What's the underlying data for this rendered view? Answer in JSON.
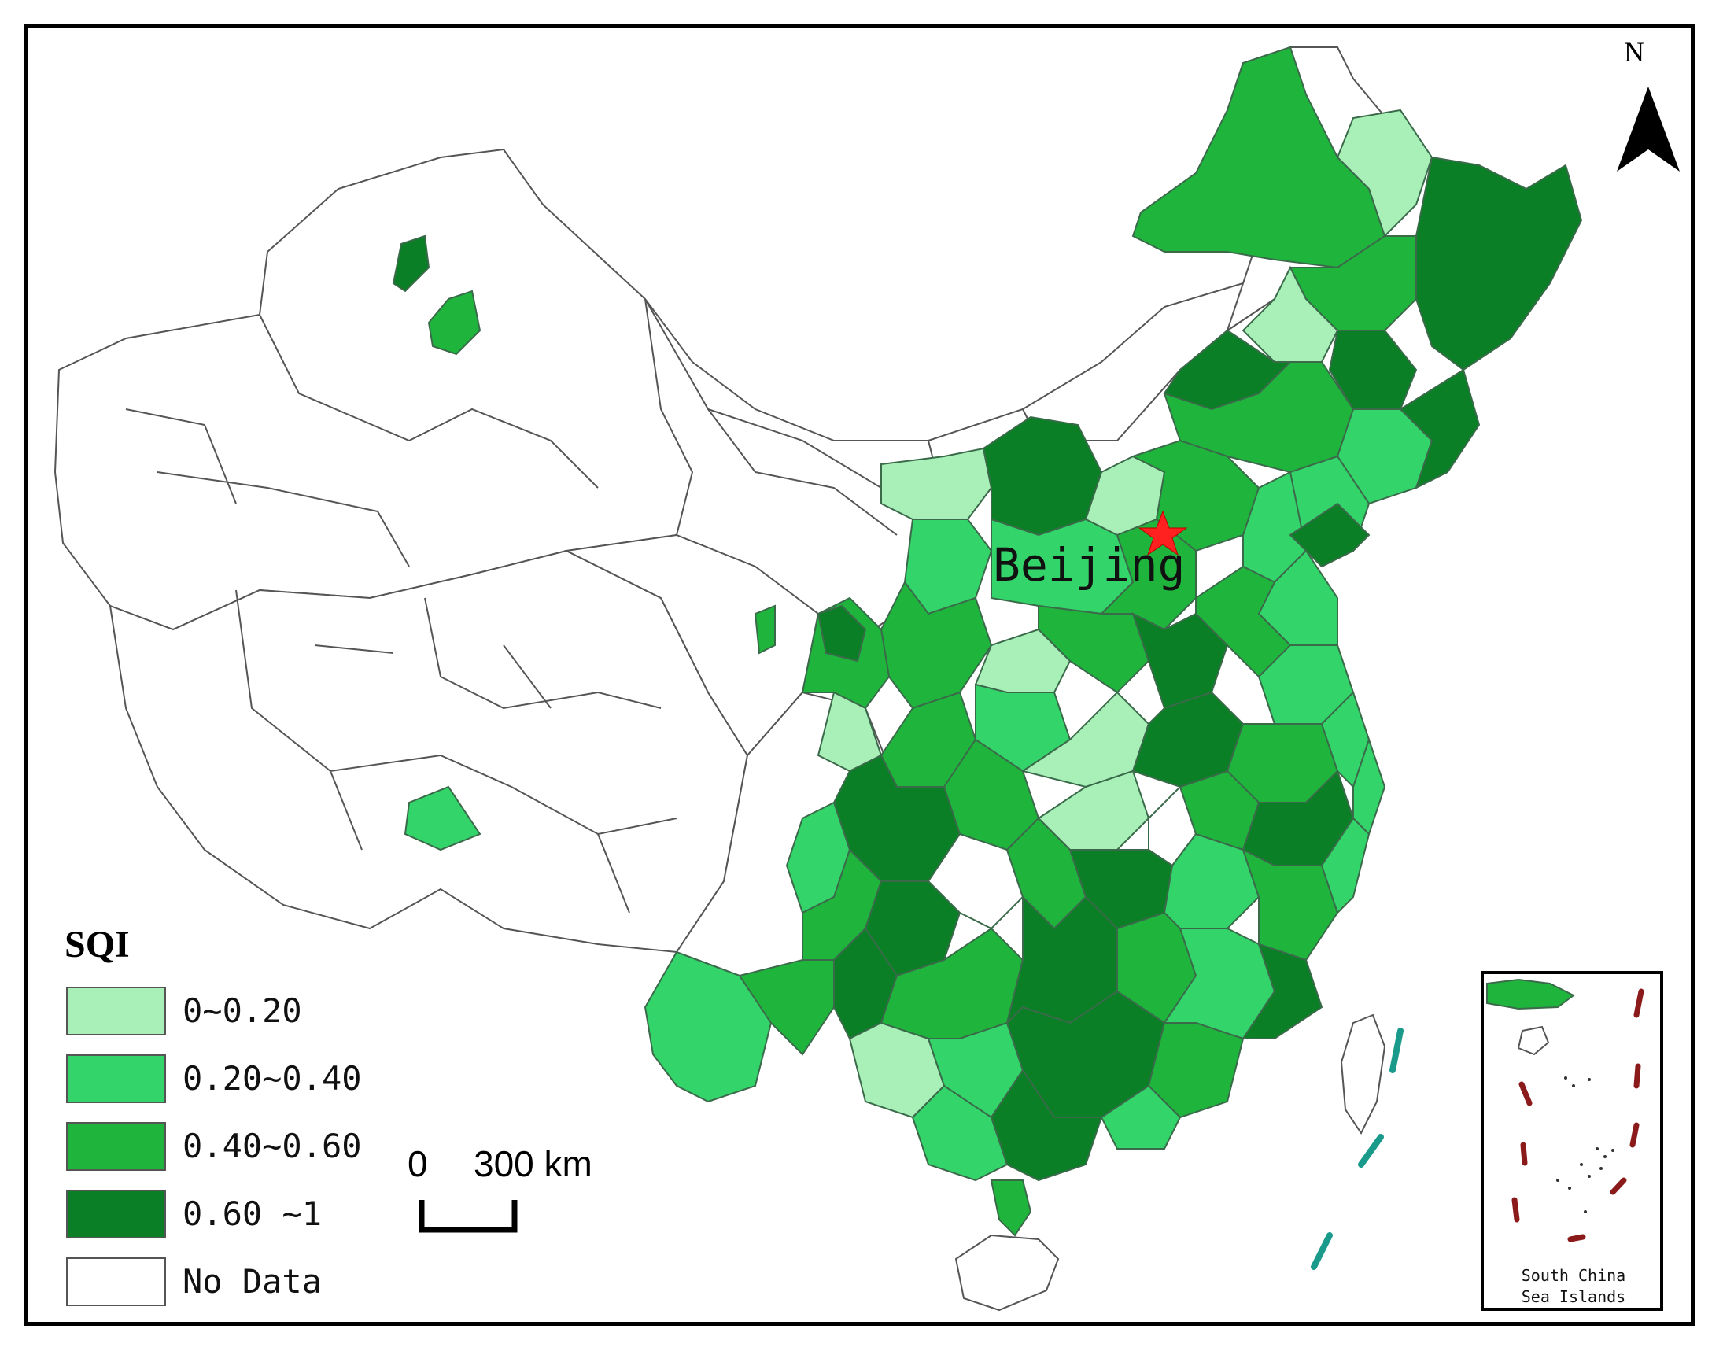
{
  "map": {
    "north_label": "N",
    "capital_label": "Beijing",
    "legend": {
      "title": "SQI",
      "items": [
        {
          "label": "0~0.20",
          "color": "#a8f0b8"
        },
        {
          "label": "0.20~0.40",
          "color": "#33d56a"
        },
        {
          "label": "0.40~0.60",
          "color": "#1fb53d"
        },
        {
          "label": "0.60 ~1",
          "color": "#0a7f25"
        },
        {
          "label": "No Data",
          "color": "#ffffff"
        }
      ]
    },
    "scale_bar": {
      "zero": "0",
      "distance": "300 km"
    },
    "inset": {
      "line1": "South China",
      "line2": "Sea Islands"
    },
    "colors": {
      "capital_star": "#ff2020",
      "nine_dash_inset": "#8b1a1a",
      "nine_dash_main": "#1a9a8a",
      "boundary": "#555555"
    }
  }
}
